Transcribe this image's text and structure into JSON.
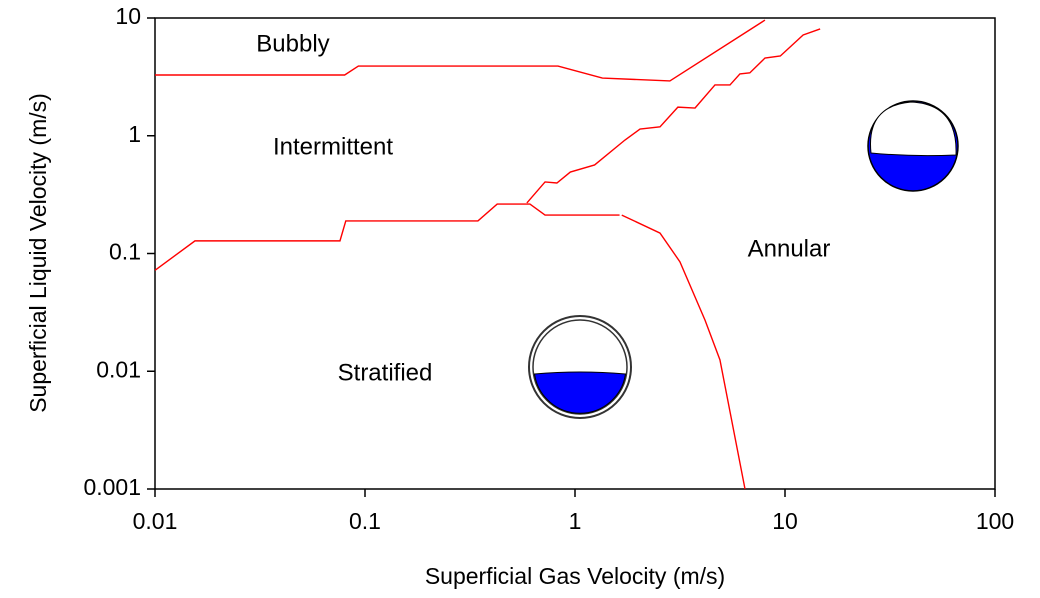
{
  "chart_data": {
    "type": "line",
    "xlabel": "Superficial Gas Velocity (m/s)",
    "ylabel": "Superficial Liquid Velocity (m/s)",
    "xscale": "log",
    "yscale": "log",
    "xlim": [
      0.01,
      100
    ],
    "ylim": [
      0.001,
      10
    ],
    "xticks": [
      0.01,
      0.1,
      1,
      10,
      100
    ],
    "yticks": [
      0.001,
      0.01,
      0.1,
      1,
      10
    ],
    "grid": false,
    "annotations": [
      "Bubbly",
      "Intermittent",
      "Annular",
      "Stratified"
    ],
    "series": [
      {
        "color": "#ff0000",
        "x": [
          0.01,
          0.08,
          0.093,
          0.83,
          1.35,
          2.83,
          8.03
        ],
        "values": [
          3.28,
          3.28,
          3.91,
          3.91,
          3.09,
          2.92,
          9.6
        ]
      },
      {
        "color": "#ff0000",
        "x": [
          0.01,
          0.0155,
          0.076,
          0.081,
          0.345,
          0.426,
          0.61,
          0.72,
          1.63
        ],
        "values": [
          0.072,
          0.128,
          0.128,
          0.189,
          0.189,
          0.263,
          0.263,
          0.212,
          0.212
        ]
      },
      {
        "color": "#ff0000",
        "x": [
          1.67,
          2.54,
          3.16,
          4.16,
          4.9,
          6.45
        ],
        "values": [
          0.212,
          0.149,
          0.085,
          0.0272,
          0.0125,
          0.001
        ]
      },
      {
        "color": "#ff0000",
        "x": [
          0.59,
          0.72,
          0.82,
          0.95,
          1.24,
          1.73,
          2.04,
          2.54,
          3.09,
          3.73,
          4.64,
          5.47,
          6.1,
          6.8,
          8.03,
          9.5,
          12.2,
          14.7
        ],
        "values": [
          0.269,
          0.405,
          0.397,
          0.492,
          0.565,
          0.92,
          1.14,
          1.19,
          1.75,
          1.72,
          2.7,
          2.7,
          3.35,
          3.42,
          4.57,
          4.76,
          7.17,
          8.07
        ]
      }
    ]
  }
}
